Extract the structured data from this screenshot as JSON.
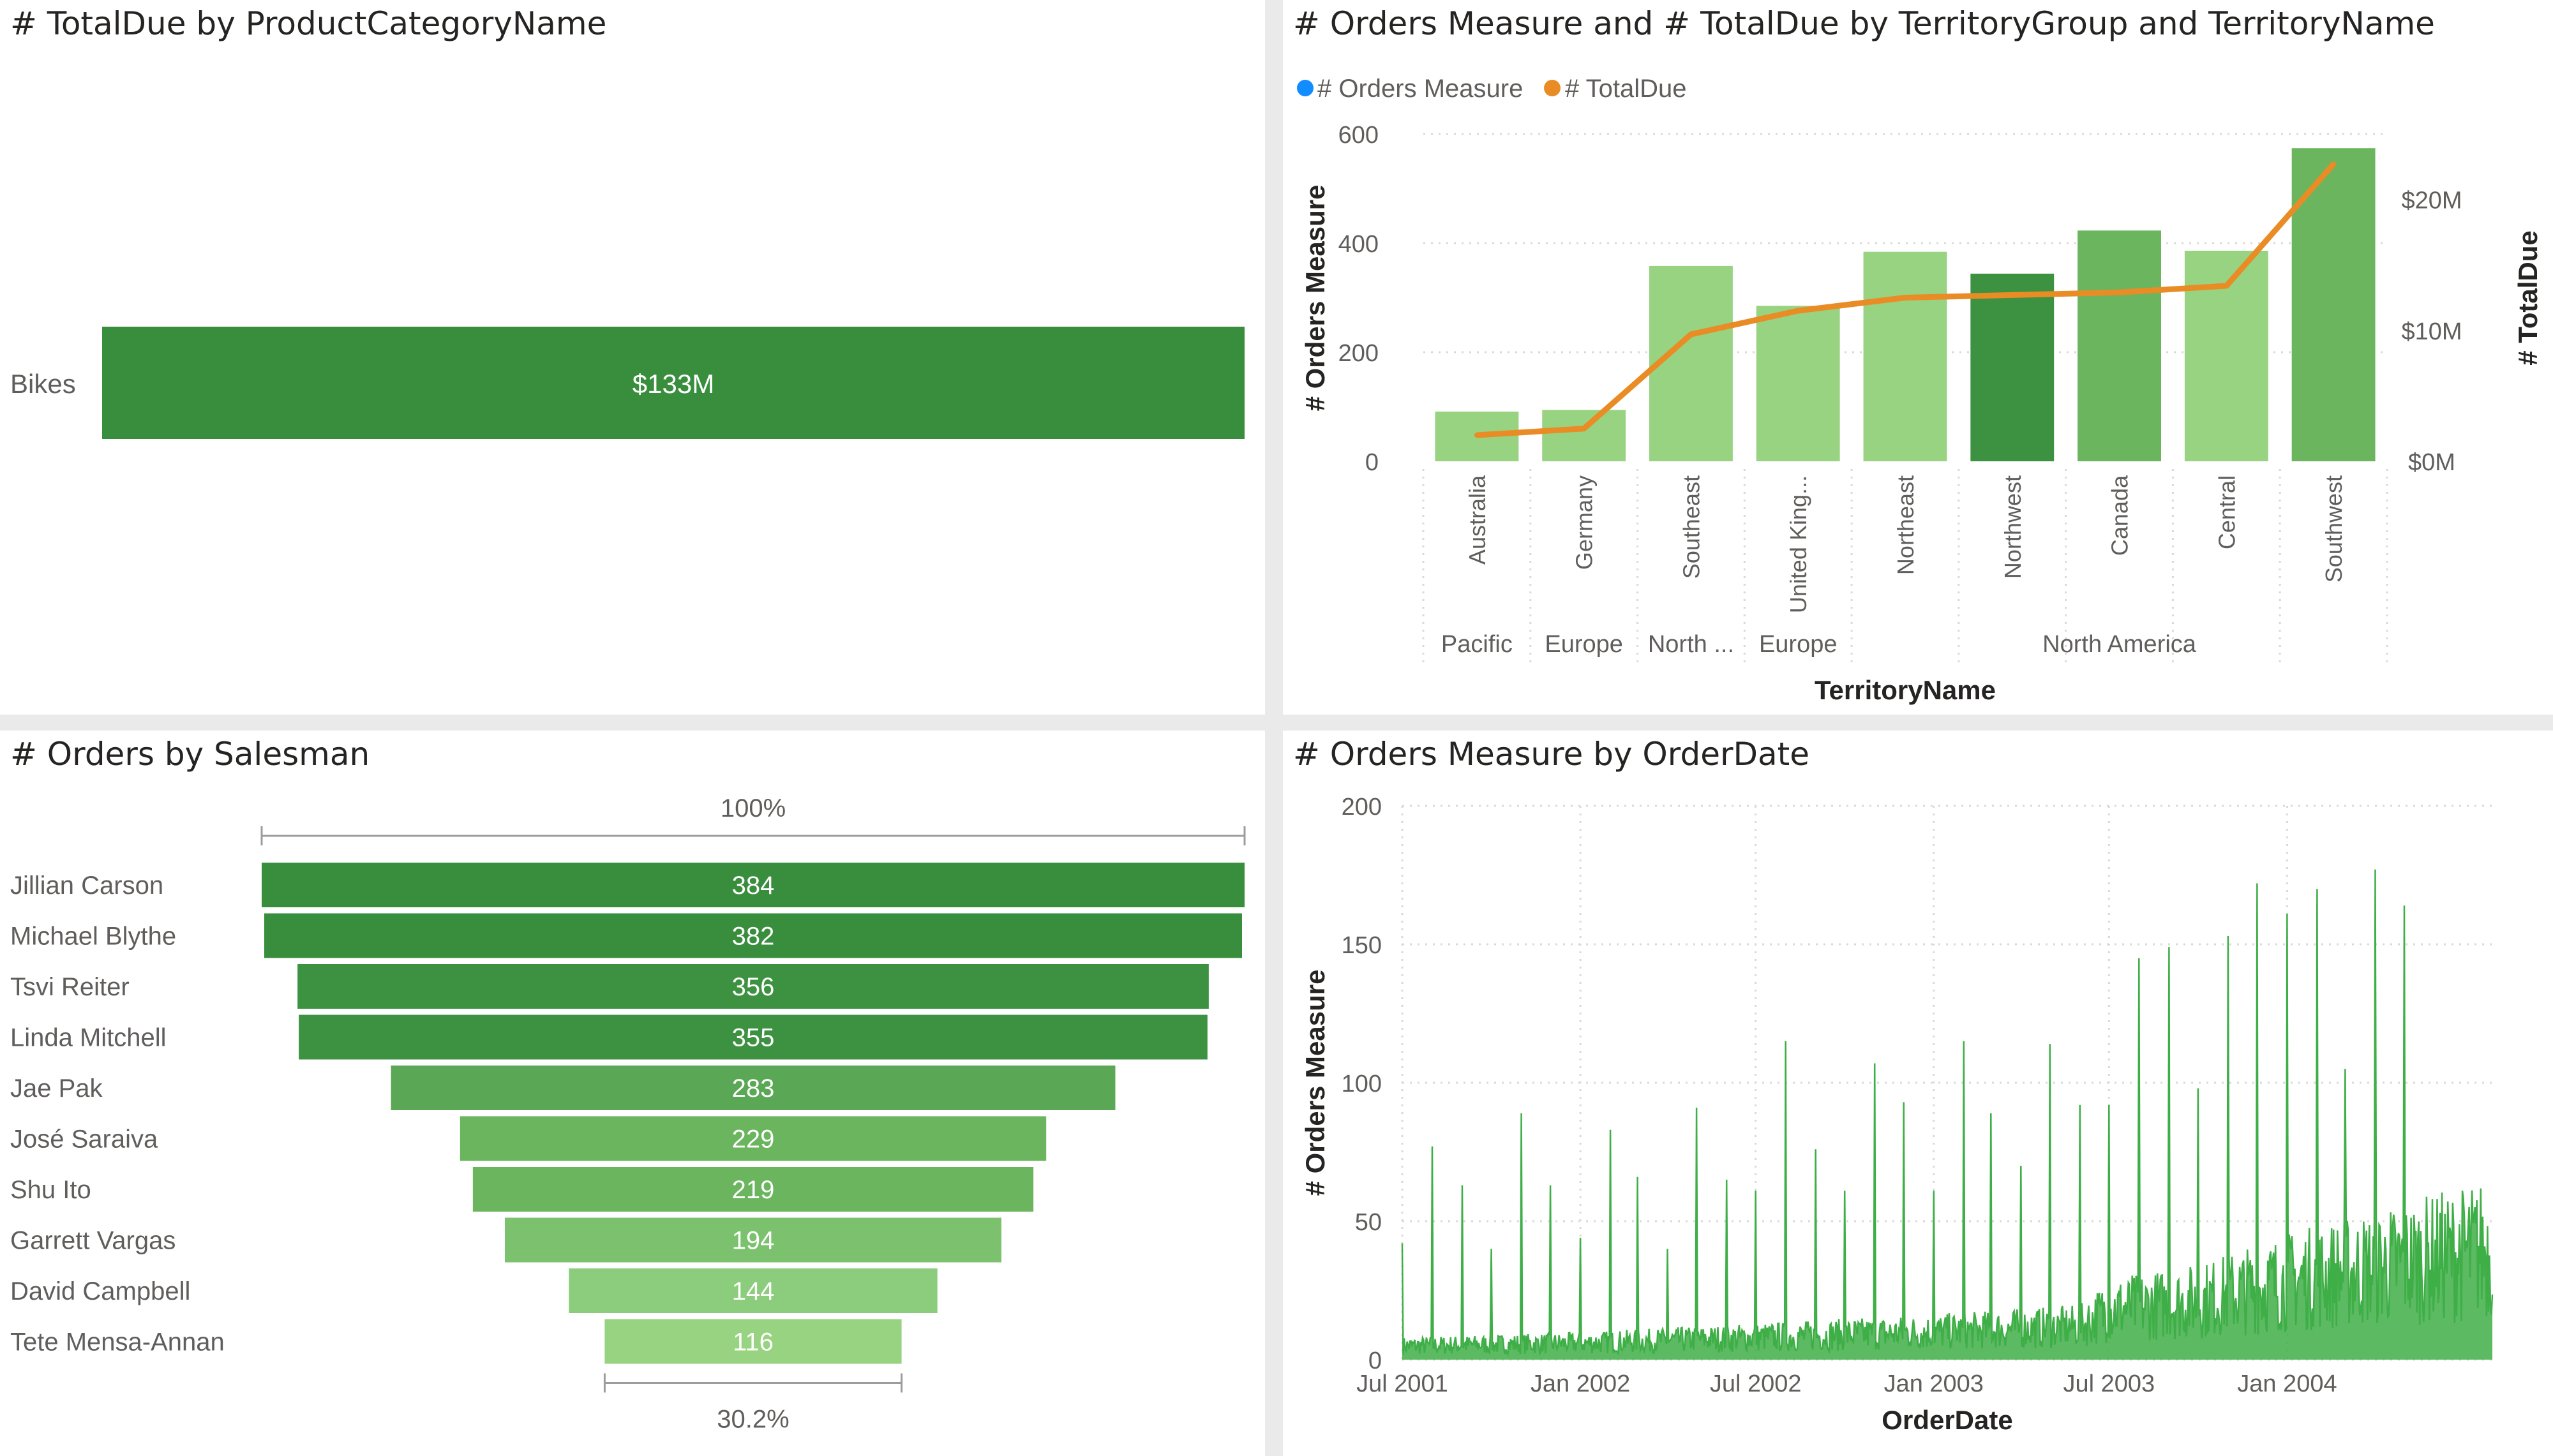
{
  "colors": {
    "dark_green": "#388e3c",
    "mid_green": "#3c9240",
    "green": "#6ab55e",
    "light_green": "#98d381",
    "orange": "#ea8c25",
    "blue": "#118dff",
    "line_green": "#3eae46",
    "grid": "#d9d9d9",
    "text": "#605e5c"
  },
  "panels": {
    "bar": {
      "title": "# TotalDue by ProductCategoryName"
    },
    "combo": {
      "title": "# Orders Measure and # TotalDue by TerritoryGroup and TerritoryName"
    },
    "funnel": {
      "title": "# Orders by Salesman"
    },
    "line": {
      "title": "# Orders Measure by OrderDate"
    }
  },
  "chart_data": [
    {
      "type": "bar",
      "orientation": "horizontal",
      "title": "# TotalDue by ProductCategoryName",
      "categories": [
        "Bikes"
      ],
      "values": [
        133000000
      ],
      "data_labels": [
        "$133M"
      ],
      "color": "#388e3c"
    },
    {
      "type": "bar",
      "combo": "bar+line",
      "title": "# Orders Measure and # TotalDue by TerritoryGroup and TerritoryName",
      "xlabel": "TerritoryName",
      "ylabel": "# Orders Measure",
      "ylabel2": "# TotalDue",
      "ylim": [
        0,
        600
      ],
      "ylim2": [
        0,
        25000000
      ],
      "yticks": [
        "0",
        "200",
        "400",
        "600"
      ],
      "yticks2": [
        "$0M",
        "$10M",
        "$20M"
      ],
      "legend": {
        "position": "top-left",
        "entries": [
          "# Orders Measure",
          "# TotalDue"
        ]
      },
      "categories": [
        "Australia",
        "Germany",
        "Southeast",
        "United King...",
        "Northeast",
        "Northwest",
        "Canada",
        "Central",
        "Southwest"
      ],
      "groups": [
        {
          "label": "Pacific",
          "count": 1
        },
        {
          "label": "Europe",
          "count": 1
        },
        {
          "label": "North ...",
          "count": 1
        },
        {
          "label": "Europe",
          "count": 1
        },
        {
          "label": "North America",
          "count": 5
        }
      ],
      "series": [
        {
          "name": "# Orders Measure",
          "kind": "bar",
          "values": [
            91,
            94,
            358,
            285,
            384,
            344,
            423,
            386,
            574
          ],
          "colors": [
            "#98d381",
            "#98d381",
            "#98d381",
            "#98d381",
            "#98d381",
            "#3c9240",
            "#6ab55e",
            "#98d381",
            "#6ab55e"
          ]
        },
        {
          "name": "# TotalDue",
          "kind": "line",
          "values": [
            2000000,
            2500000,
            9700000,
            11500000,
            12500000,
            12700000,
            12900000,
            13400000,
            22700000
          ]
        }
      ]
    },
    {
      "type": "bar",
      "subtype": "funnel",
      "title": "# Orders by Salesman",
      "top_label": "100%",
      "bottom_label": "30.2%",
      "categories": [
        "Jillian Carson",
        "Michael Blythe",
        "Tsvi Reiter",
        "Linda Mitchell",
        "Jae Pak",
        "José Saraiva",
        "Shu Ito",
        "Garrett Vargas",
        "David Campbell",
        "Tete Mensa-Annan"
      ],
      "values": [
        384,
        382,
        356,
        355,
        283,
        229,
        219,
        194,
        144,
        116
      ],
      "colors": [
        "#388e3c",
        "#388e3c",
        "#3c9240",
        "#3c9240",
        "#5aa856",
        "#6ab55e",
        "#6ab55e",
        "#7cc26e",
        "#8ccd7d",
        "#98d381"
      ]
    },
    {
      "type": "line",
      "title": "# Orders Measure by OrderDate",
      "xlabel": "OrderDate",
      "ylabel": "# Orders Measure",
      "ylim": [
        0,
        200
      ],
      "yticks": [
        "0",
        "50",
        "100",
        "150",
        "200"
      ],
      "xticks": [
        "Jul 2001",
        "Jan 2002",
        "Jul 2002",
        "Jan 2003",
        "Jul 2003",
        "Jan 2004"
      ],
      "x_range": [
        "2001-07-01",
        "2004-07-31"
      ],
      "grid": true,
      "series": [
        {
          "name": "# Orders Measure",
          "color": "#3eae46",
          "baseline": [
            [
              "2001-07-01",
              5
            ],
            [
              "2002-01-01",
              6
            ],
            [
              "2002-07-01",
              8
            ],
            [
              "2003-01-01",
              10
            ],
            [
              "2003-06-01",
              12
            ],
            [
              "2003-07-01",
              18
            ],
            [
              "2003-10-01",
              21
            ],
            [
              "2004-01-01",
              28
            ],
            [
              "2004-04-01",
              33
            ],
            [
              "2004-07-31",
              40
            ]
          ],
          "spikes": [
            [
              "2001-07-01",
              42
            ],
            [
              "2001-08-01",
              77
            ],
            [
              "2001-09-01",
              63
            ],
            [
              "2001-10-01",
              40
            ],
            [
              "2001-11-01",
              89
            ],
            [
              "2001-12-01",
              63
            ],
            [
              "2002-01-01",
              44
            ],
            [
              "2002-02-01",
              83
            ],
            [
              "2002-03-01",
              66
            ],
            [
              "2002-04-01",
              40
            ],
            [
              "2002-05-01",
              91
            ],
            [
              "2002-06-01",
              65
            ],
            [
              "2002-07-01",
              61
            ],
            [
              "2002-08-01",
              115
            ],
            [
              "2002-09-01",
              76
            ],
            [
              "2002-10-01",
              61
            ],
            [
              "2002-11-01",
              107
            ],
            [
              "2002-12-01",
              93
            ],
            [
              "2003-01-01",
              61
            ],
            [
              "2003-02-01",
              115
            ],
            [
              "2003-03-01",
              89
            ],
            [
              "2003-04-01",
              70
            ],
            [
              "2003-05-01",
              114
            ],
            [
              "2003-06-01",
              92
            ],
            [
              "2003-07-01",
              92
            ],
            [
              "2003-08-01",
              145
            ],
            [
              "2003-09-01",
              149
            ],
            [
              "2003-10-01",
              98
            ],
            [
              "2003-11-01",
              153
            ],
            [
              "2003-12-01",
              172
            ],
            [
              "2004-01-01",
              161
            ],
            [
              "2004-02-01",
              170
            ],
            [
              "2004-03-01",
              105
            ],
            [
              "2004-04-01",
              177
            ],
            [
              "2004-05-01",
              164
            ]
          ]
        }
      ]
    }
  ]
}
